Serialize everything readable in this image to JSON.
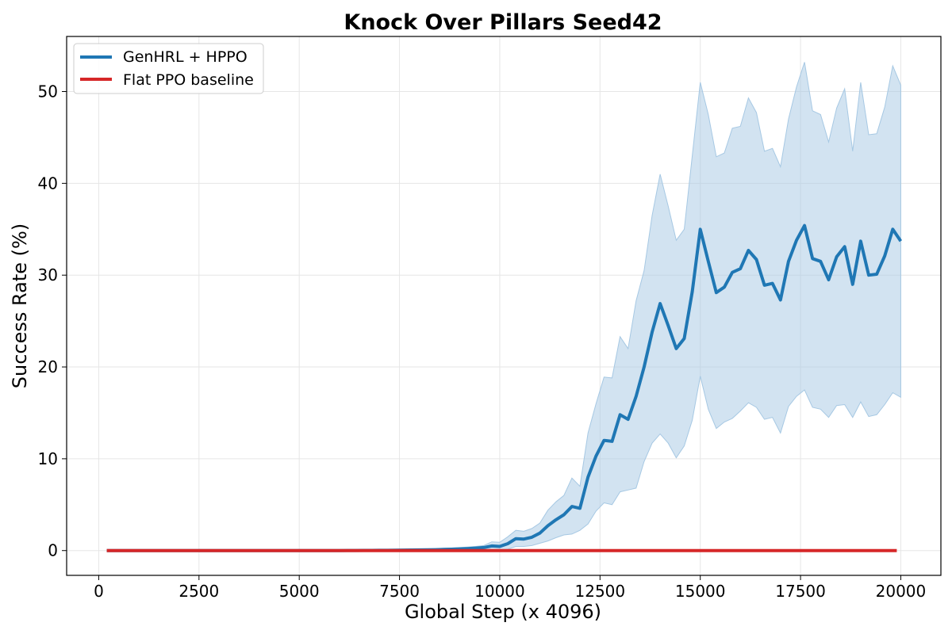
{
  "chart_data": {
    "type": "line",
    "title": "Knock Over Pillars Seed42",
    "xlabel": "Global Step (x 4096)",
    "ylabel": "Success Rate (%)",
    "xlim": [
      -800,
      21000
    ],
    "ylim": [
      -2.7,
      56
    ],
    "xticks": [
      0,
      2500,
      5000,
      7500,
      10000,
      12500,
      15000,
      17500,
      20000
    ],
    "yticks": [
      0,
      10,
      20,
      30,
      40,
      50
    ],
    "grid": true,
    "legend_position": "top-left",
    "series": [
      {
        "name": "GenHRL + HPPO",
        "color": "#1f77b4",
        "band_color": "#a6c8e3",
        "x": [
          200,
          400,
          600,
          800,
          1000,
          1200,
          1400,
          1600,
          1800,
          2000,
          2200,
          2400,
          2600,
          2800,
          3000,
          3200,
          3400,
          3600,
          3800,
          4000,
          4200,
          4400,
          4600,
          4800,
          5000,
          5200,
          5400,
          5600,
          5800,
          6000,
          6200,
          6400,
          6600,
          6800,
          7000,
          7200,
          7400,
          7600,
          7800,
          8000,
          8200,
          8400,
          8600,
          8800,
          9000,
          9200,
          9400,
          9600,
          9800,
          10000,
          10200,
          10400,
          10600,
          10800,
          11000,
          11200,
          11400,
          11600,
          11800,
          12000,
          12200,
          12400,
          12600,
          12800,
          13000,
          13200,
          13400,
          13600,
          13800,
          14000,
          14200,
          14400,
          14600,
          14800,
          15000,
          15200,
          15400,
          15600,
          15800,
          16000,
          16200,
          16400,
          16600,
          16800,
          17000,
          17200,
          17400,
          17600,
          17800,
          18000,
          18200,
          18400,
          18600,
          18800,
          19000,
          19200,
          19400,
          19600,
          19800,
          20000
        ],
        "y": [
          0,
          0,
          0,
          0,
          0,
          0,
          0,
          0,
          0,
          0,
          0,
          0,
          0,
          0,
          0,
          0,
          0,
          0,
          0,
          0,
          0,
          0,
          0,
          0,
          0,
          0,
          0,
          0,
          0,
          0,
          0.01,
          0.01,
          0.02,
          0.02,
          0.03,
          0.03,
          0.04,
          0.05,
          0.06,
          0.07,
          0.08,
          0.1,
          0.12,
          0.15,
          0.18,
          0.22,
          0.27,
          0.33,
          0.5,
          0.45,
          0.75,
          1.3,
          1.25,
          1.45,
          1.9,
          2.7,
          3.35,
          3.9,
          4.8,
          4.6,
          8.0,
          10.3,
          12.0,
          11.9,
          14.8,
          14.3,
          16.8,
          20.0,
          23.8,
          26.9,
          24.5,
          22.0,
          23.1,
          28.2,
          35.0,
          31.5,
          28.1,
          28.7,
          30.3,
          30.7,
          32.7,
          31.7,
          28.9,
          29.1,
          27.3,
          31.5,
          33.8,
          35.4,
          31.8,
          31.5,
          29.5,
          32.0,
          33.1,
          29.0,
          33.7,
          30.0,
          30.1,
          32.1,
          35.0,
          33.7
        ],
        "y_upper": [
          0,
          0,
          0,
          0,
          0,
          0,
          0,
          0,
          0,
          0,
          0,
          0,
          0,
          0,
          0,
          0,
          0,
          0,
          0,
          0,
          0,
          0,
          0,
          0,
          0,
          0,
          0,
          0,
          0,
          0,
          0.02,
          0.02,
          0.03,
          0.04,
          0.05,
          0.06,
          0.08,
          0.1,
          0.12,
          0.14,
          0.17,
          0.2,
          0.24,
          0.28,
          0.33,
          0.38,
          0.45,
          0.55,
          0.95,
          0.9,
          1.5,
          2.2,
          2.1,
          2.4,
          3.0,
          4.4,
          5.3,
          6.0,
          7.9,
          7.0,
          12.8,
          16.0,
          18.9,
          18.8,
          23.3,
          22.0,
          27.2,
          30.5,
          36.5,
          41.0,
          37.5,
          33.8,
          35.0,
          43.0,
          51.0,
          47.5,
          42.9,
          43.3,
          46.0,
          46.2,
          49.3,
          47.7,
          43.5,
          43.8,
          41.8,
          47.0,
          50.5,
          53.2,
          47.9,
          47.5,
          44.5,
          48.2,
          50.3,
          43.5,
          51.0,
          45.3,
          45.4,
          48.3,
          52.8,
          50.7
        ],
        "y_lower": [
          0,
          0,
          0,
          0,
          0,
          0,
          0,
          0,
          0,
          0,
          0,
          0,
          0,
          0,
          0,
          0,
          0,
          0,
          0,
          0,
          0,
          0,
          0,
          0,
          0,
          0,
          0,
          0,
          0,
          0,
          0,
          0,
          0.01,
          0.01,
          0.01,
          0.01,
          0.01,
          0.01,
          0.01,
          0.01,
          0.01,
          0.02,
          0.02,
          0.03,
          0.04,
          0.05,
          0.06,
          0.08,
          0.1,
          0.05,
          0.15,
          0.45,
          0.45,
          0.55,
          0.8,
          1.05,
          1.4,
          1.7,
          1.8,
          2.2,
          2.9,
          4.3,
          5.2,
          5.0,
          6.4,
          6.6,
          6.8,
          9.7,
          11.7,
          12.7,
          11.7,
          10.1,
          11.4,
          14.2,
          19.0,
          15.4,
          13.3,
          14.0,
          14.4,
          15.2,
          16.1,
          15.6,
          14.3,
          14.5,
          12.8,
          15.7,
          16.8,
          17.5,
          15.6,
          15.4,
          14.5,
          15.8,
          15.9,
          14.5,
          16.2,
          14.6,
          14.8,
          15.9,
          17.2,
          16.7
        ]
      },
      {
        "name": "Flat PPO baseline",
        "color": "#d62728",
        "x": [
          200,
          19900
        ],
        "y": [
          0,
          0
        ]
      }
    ]
  }
}
